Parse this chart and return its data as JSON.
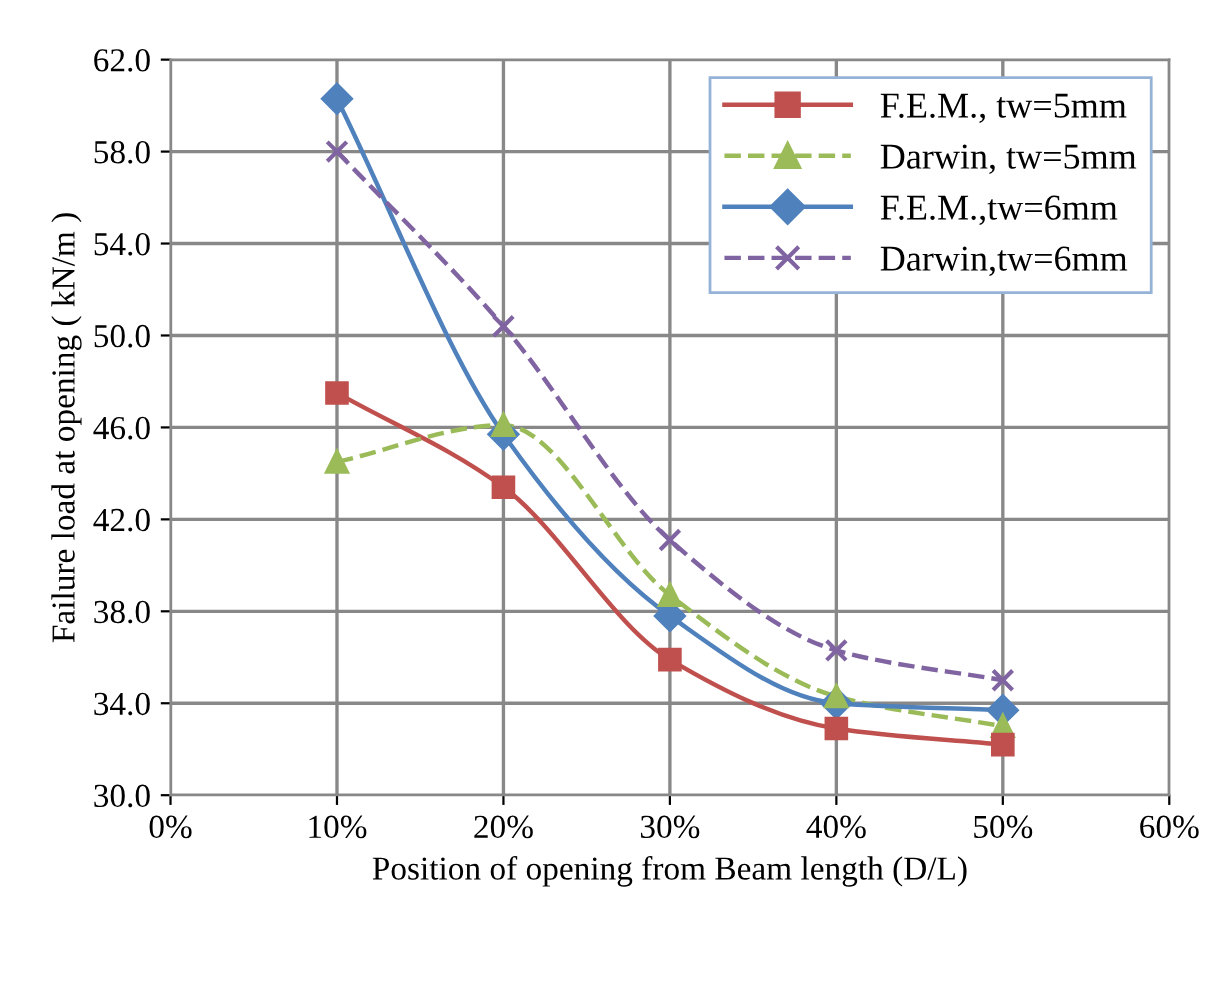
{
  "chart_data": {
    "type": "line",
    "xlabel": "Position of opening from Beam length (D/L)",
    "ylabel": "Failure load at opening ( kN/m )",
    "x": [
      10,
      20,
      30,
      40,
      50
    ],
    "series": [
      {
        "name": "F.E.M., tw=5mm",
        "color": "#c0504d",
        "values": [
          47.5,
          43.4,
          35.9,
          32.9,
          32.2
        ],
        "marker": "square",
        "line_style": "solid"
      },
      {
        "name": "Darwin, tw=5mm",
        "color": "#9bbb59",
        "values": [
          44.5,
          46.1,
          38.7,
          34.3,
          33.0
        ],
        "marker": "triangle",
        "line_style": "dashed"
      },
      {
        "name": "F.E.M.,tw=6mm",
        "color": "#4f81bd",
        "values": [
          60.3,
          45.7,
          37.8,
          34.0,
          33.7
        ],
        "marker": "diamond",
        "line_style": "solid"
      },
      {
        "name": "Darwin,tw=6mm",
        "color": "#8064a2",
        "values": [
          58.0,
          50.4,
          41.1,
          36.3,
          35.0
        ],
        "marker": "cross",
        "line_style": "dashed"
      }
    ],
    "xlim": [
      0,
      60
    ],
    "xticks": [
      {
        "value": 0,
        "label": "0%"
      },
      {
        "value": 10,
        "label": "10%"
      },
      {
        "value": 20,
        "label": "20%"
      },
      {
        "value": 30,
        "label": "30%"
      },
      {
        "value": 40,
        "label": "40%"
      },
      {
        "value": 50,
        "label": "50%"
      },
      {
        "value": 60,
        "label": "60%"
      }
    ],
    "ylim": [
      30,
      62
    ],
    "yticks": [
      {
        "value": 30,
        "label": "30.0"
      },
      {
        "value": 34,
        "label": "34.0"
      },
      {
        "value": 38,
        "label": "38.0"
      },
      {
        "value": 42,
        "label": "42.0"
      },
      {
        "value": 46,
        "label": "46.0"
      },
      {
        "value": 50,
        "label": "50.0"
      },
      {
        "value": 54,
        "label": "54.0"
      },
      {
        "value": 58,
        "label": "58.0"
      },
      {
        "value": 62,
        "label": "62.0"
      }
    ],
    "grid": true,
    "legend": "top right"
  }
}
